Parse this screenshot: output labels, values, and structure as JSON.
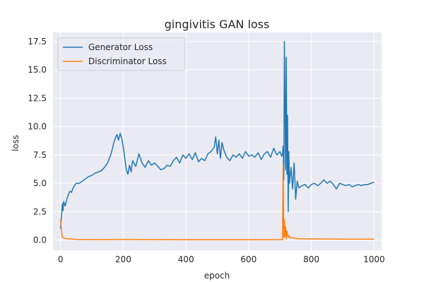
{
  "chart_data": {
    "type": "line",
    "title": "gingivitis GAN loss",
    "xlabel": "epoch",
    "ylabel": "loss",
    "xlim": [
      -24,
      1024
    ],
    "ylim": [
      -0.9,
      18.3
    ],
    "xticks": [
      0,
      200,
      400,
      600,
      800,
      1000
    ],
    "xtick_labels": [
      "0",
      "200",
      "400",
      "600",
      "800",
      "1000"
    ],
    "yticks": [
      0.0,
      2.5,
      5.0,
      7.5,
      10.0,
      12.5,
      15.0,
      17.5
    ],
    "ytick_labels": [
      "0.0",
      "2.5",
      "5.0",
      "7.5",
      "10.0",
      "12.5",
      "15.0",
      "17.5"
    ],
    "grid": true,
    "legend_position": "top-left",
    "background_color": "#eaeaf2",
    "series": [
      {
        "name": "Generator Loss",
        "color": "#1f77b4",
        "x": [
          0,
          2,
          4,
          6,
          8,
          10,
          15,
          20,
          25,
          30,
          35,
          40,
          45,
          50,
          60,
          70,
          80,
          90,
          100,
          110,
          120,
          130,
          140,
          150,
          160,
          165,
          170,
          175,
          180,
          185,
          190,
          195,
          200,
          205,
          210,
          215,
          220,
          225,
          230,
          240,
          250,
          260,
          270,
          280,
          290,
          300,
          310,
          320,
          330,
          340,
          350,
          360,
          370,
          380,
          390,
          400,
          410,
          420,
          430,
          440,
          450,
          460,
          470,
          480,
          490,
          495,
          500,
          505,
          510,
          515,
          520,
          530,
          540,
          550,
          560,
          570,
          580,
          590,
          600,
          610,
          620,
          630,
          640,
          650,
          660,
          670,
          680,
          690,
          700,
          705,
          708,
          710,
          712,
          714,
          716,
          718,
          720,
          722,
          724,
          726,
          728,
          730,
          735,
          740,
          745,
          750,
          755,
          760,
          770,
          780,
          790,
          800,
          810,
          820,
          830,
          840,
          850,
          860,
          870,
          880,
          890,
          900,
          910,
          920,
          930,
          940,
          950,
          960,
          970,
          980,
          990,
          1000
        ],
        "y": [
          1.0,
          1.8,
          2.4,
          3.2,
          2.6,
          3.4,
          3.0,
          3.6,
          4.0,
          4.3,
          4.2,
          4.6,
          4.8,
          5.0,
          5.0,
          5.2,
          5.4,
          5.6,
          5.7,
          5.9,
          6.0,
          6.1,
          6.4,
          6.8,
          7.5,
          8.0,
          8.6,
          9.0,
          9.3,
          8.8,
          9.4,
          9.0,
          8.2,
          7.2,
          6.2,
          5.8,
          6.6,
          6.0,
          7.0,
          6.5,
          7.6,
          6.8,
          6.4,
          7.0,
          6.6,
          6.8,
          6.5,
          6.2,
          6.3,
          6.6,
          6.5,
          7.0,
          7.3,
          6.8,
          7.5,
          7.2,
          7.6,
          7.1,
          7.7,
          6.9,
          7.2,
          7.0,
          7.6,
          7.8,
          8.2,
          9.1,
          7.6,
          8.8,
          7.2,
          8.6,
          8.0,
          7.3,
          7.0,
          7.5,
          7.3,
          7.6,
          7.2,
          7.8,
          7.4,
          7.5,
          7.3,
          7.7,
          7.1,
          7.6,
          7.8,
          7.3,
          8.1,
          7.5,
          7.8,
          7.4,
          7.6,
          8.3,
          5.3,
          17.5,
          12.0,
          6.2,
          16.1,
          5.8,
          11.0,
          2.5,
          7.8,
          5.0,
          6.4,
          4.5,
          6.8,
          3.6,
          5.2,
          4.6,
          4.8,
          4.9,
          4.6,
          4.9,
          5.0,
          4.8,
          5.0,
          5.3,
          5.0,
          5.2,
          4.9,
          4.5,
          5.0,
          4.9,
          4.8,
          4.9,
          4.7,
          4.8,
          4.9,
          4.8,
          4.9,
          4.9,
          5.0,
          5.1
        ]
      },
      {
        "name": "Discriminator Loss",
        "color": "#ff7f0e",
        "x": [
          0,
          2,
          4,
          6,
          8,
          10,
          15,
          20,
          30,
          40,
          50,
          100,
          150,
          200,
          250,
          300,
          400,
          500,
          600,
          700,
          705,
          708,
          710,
          712,
          714,
          716,
          718,
          720,
          722,
          724,
          726,
          728,
          730,
          740,
          750,
          760,
          770,
          780,
          800,
          900,
          1000
        ],
        "y": [
          1.8,
          1.2,
          0.5,
          0.3,
          0.2,
          0.2,
          0.15,
          0.12,
          0.1,
          0.08,
          0.06,
          0.05,
          0.05,
          0.06,
          0.05,
          0.05,
          0.04,
          0.04,
          0.04,
          0.04,
          0.04,
          0.05,
          6.6,
          0.2,
          1.8,
          0.3,
          1.2,
          0.1,
          0.8,
          0.5,
          0.3,
          0.4,
          0.2,
          0.2,
          0.15,
          0.1,
          0.12,
          0.1,
          0.1,
          0.08,
          0.08
        ]
      }
    ]
  }
}
